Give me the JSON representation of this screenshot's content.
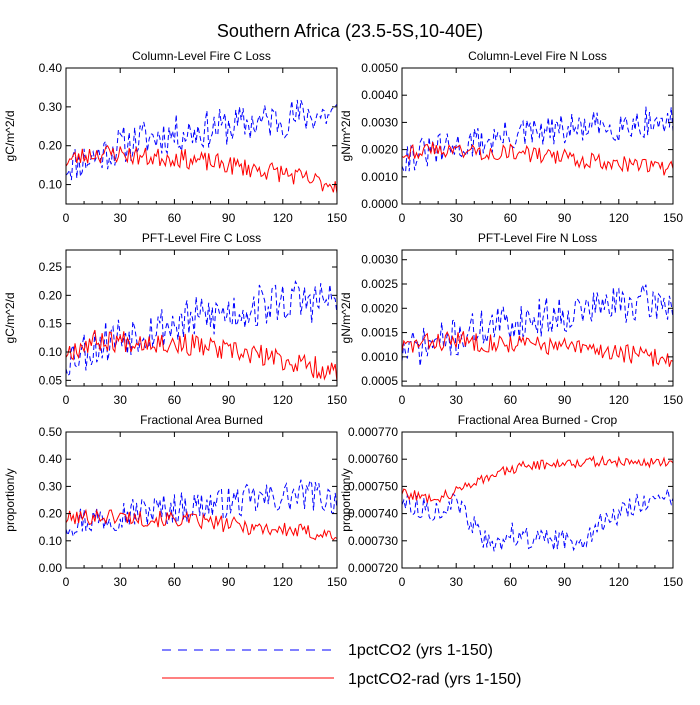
{
  "page": {
    "title": "Southern Africa (23.5-5S,10-40E)"
  },
  "legend": [
    {
      "label": "1pctCO2 (yrs 1-150)",
      "color": "#0000ff",
      "dash": "dashed"
    },
    {
      "label": "1pctCO2-rad (yrs 1-150)",
      "color": "#ff0000",
      "dash": "solid"
    }
  ],
  "chart_data": [
    {
      "type": "line",
      "title": "Column-Level Fire C Loss",
      "xlabel": "",
      "ylabel": "gC/m^2/d",
      "xlim": [
        0,
        150
      ],
      "ylim": [
        0.05,
        0.4
      ],
      "xticks": [
        0,
        30,
        60,
        90,
        120,
        150
      ],
      "yticks": [
        0.1,
        0.2,
        0.3,
        0.4
      ],
      "ytick_labels": [
        "0.10",
        "0.20",
        "0.30",
        "0.40"
      ],
      "series": [
        {
          "name": "1pctCO2 (yrs 1-150)",
          "x": [
            0,
            15,
            30,
            45,
            60,
            75,
            90,
            105,
            120,
            135,
            150
          ],
          "y": [
            0.15,
            0.17,
            0.2,
            0.22,
            0.23,
            0.24,
            0.25,
            0.26,
            0.27,
            0.28,
            0.28
          ],
          "amp": 0.05,
          "seed": 11
        },
        {
          "name": "1pctCO2-rad (yrs 1-150)",
          "x": [
            0,
            15,
            30,
            45,
            60,
            75,
            90,
            105,
            120,
            135,
            150
          ],
          "y": [
            0.16,
            0.18,
            0.18,
            0.17,
            0.17,
            0.16,
            0.15,
            0.14,
            0.13,
            0.11,
            0.1
          ],
          "amp": 0.025,
          "seed": 23
        }
      ]
    },
    {
      "type": "line",
      "title": "Column-Level Fire N Loss",
      "xlabel": "",
      "ylabel": "gN/m^2/d",
      "xlim": [
        0,
        150
      ],
      "ylim": [
        0.0,
        0.005
      ],
      "xticks": [
        0,
        30,
        60,
        90,
        120,
        150
      ],
      "yticks": [
        0.0,
        0.001,
        0.002,
        0.003,
        0.004,
        0.005
      ],
      "ytick_labels": [
        "0.0000",
        "0.0010",
        "0.0020",
        "0.0030",
        "0.0040",
        "0.0050"
      ],
      "series": [
        {
          "name": "1pctCO2 (yrs 1-150)",
          "x": [
            0,
            15,
            30,
            45,
            60,
            75,
            90,
            105,
            120,
            135,
            150
          ],
          "y": [
            0.0017,
            0.0019,
            0.0021,
            0.0023,
            0.0025,
            0.0026,
            0.0027,
            0.0028,
            0.0029,
            0.003,
            0.003
          ],
          "amp": 0.0006,
          "seed": 31
        },
        {
          "name": "1pctCO2-rad (yrs 1-150)",
          "x": [
            0,
            15,
            30,
            45,
            60,
            75,
            90,
            105,
            120,
            135,
            150
          ],
          "y": [
            0.0019,
            0.002,
            0.002,
            0.0019,
            0.0019,
            0.0018,
            0.0017,
            0.0016,
            0.0015,
            0.0014,
            0.0013
          ],
          "amp": 0.0003,
          "seed": 43
        }
      ]
    },
    {
      "type": "line",
      "title": "PFT-Level Fire C Loss",
      "xlabel": "",
      "ylabel": "gC/m^2/d",
      "xlim": [
        0,
        150
      ],
      "ylim": [
        0.04,
        0.28
      ],
      "xticks": [
        0,
        30,
        60,
        90,
        120,
        150
      ],
      "yticks": [
        0.05,
        0.1,
        0.15,
        0.2,
        0.25
      ],
      "ytick_labels": [
        "0.05",
        "0.10",
        "0.15",
        "0.20",
        "0.25"
      ],
      "series": [
        {
          "name": "1pctCO2 (yrs 1-150)",
          "x": [
            0,
            15,
            30,
            45,
            60,
            75,
            90,
            105,
            120,
            135,
            150
          ],
          "y": [
            0.09,
            0.11,
            0.13,
            0.14,
            0.15,
            0.16,
            0.17,
            0.18,
            0.19,
            0.19,
            0.19
          ],
          "amp": 0.04,
          "seed": 53
        },
        {
          "name": "1pctCO2-rad (yrs 1-150)",
          "x": [
            0,
            15,
            30,
            45,
            60,
            75,
            90,
            105,
            120,
            135,
            150
          ],
          "y": [
            0.1,
            0.12,
            0.12,
            0.12,
            0.115,
            0.11,
            0.1,
            0.095,
            0.085,
            0.075,
            0.065
          ],
          "amp": 0.02,
          "seed": 67
        }
      ]
    },
    {
      "type": "line",
      "title": "PFT-Level Fire N Loss",
      "xlabel": "",
      "ylabel": "gN/m^2/d",
      "xlim": [
        0,
        150
      ],
      "ylim": [
        0.0004,
        0.0032
      ],
      "xticks": [
        0,
        30,
        60,
        90,
        120,
        150
      ],
      "yticks": [
        0.0005,
        0.001,
        0.0015,
        0.002,
        0.0025,
        0.003
      ],
      "ytick_labels": [
        "0.0005",
        "0.0010",
        "0.0015",
        "0.0020",
        "0.0025",
        "0.0030"
      ],
      "series": [
        {
          "name": "1pctCO2 (yrs 1-150)",
          "x": [
            0,
            15,
            30,
            45,
            60,
            75,
            90,
            105,
            120,
            135,
            150
          ],
          "y": [
            0.0011,
            0.00125,
            0.0014,
            0.0016,
            0.0017,
            0.0018,
            0.0019,
            0.002,
            0.0021,
            0.0021,
            0.0021
          ],
          "amp": 0.0004,
          "seed": 71
        },
        {
          "name": "1pctCO2-rad (yrs 1-150)",
          "x": [
            0,
            15,
            30,
            45,
            60,
            75,
            90,
            105,
            120,
            135,
            150
          ],
          "y": [
            0.0012,
            0.0013,
            0.00135,
            0.0013,
            0.00128,
            0.00125,
            0.0012,
            0.00115,
            0.0011,
            0.001,
            0.00095
          ],
          "amp": 0.0002,
          "seed": 83
        }
      ]
    },
    {
      "type": "line",
      "title": "Fractional Area Burned",
      "xlabel": "",
      "ylabel": "proportion/y",
      "xlim": [
        0,
        150
      ],
      "ylim": [
        0.0,
        0.5
      ],
      "xticks": [
        0,
        30,
        60,
        90,
        120,
        150
      ],
      "yticks": [
        0.0,
        0.1,
        0.2,
        0.3,
        0.4,
        0.5
      ],
      "ytick_labels": [
        "0.00",
        "0.10",
        "0.20",
        "0.30",
        "0.40",
        "0.50"
      ],
      "series": [
        {
          "name": "1pctCO2 (yrs 1-150)",
          "x": [
            0,
            15,
            30,
            45,
            60,
            75,
            90,
            105,
            120,
            135,
            150
          ],
          "y": [
            0.17,
            0.18,
            0.2,
            0.21,
            0.22,
            0.23,
            0.24,
            0.25,
            0.26,
            0.27,
            0.25
          ],
          "amp": 0.06,
          "seed": 97
        },
        {
          "name": "1pctCO2-rad (yrs 1-150)",
          "x": [
            0,
            15,
            30,
            45,
            60,
            75,
            90,
            105,
            120,
            135,
            150
          ],
          "y": [
            0.18,
            0.19,
            0.19,
            0.18,
            0.18,
            0.17,
            0.16,
            0.15,
            0.14,
            0.13,
            0.12
          ],
          "amp": 0.03,
          "seed": 101
        }
      ]
    },
    {
      "type": "line",
      "title": "Fractional Area Burned - Crop",
      "xlabel": "",
      "ylabel": "proportion/y",
      "xlim": [
        0,
        150
      ],
      "ylim": [
        0.00072,
        0.00077
      ],
      "xticks": [
        0,
        30,
        60,
        90,
        120,
        150
      ],
      "yticks": [
        0.00072,
        0.00073,
        0.00074,
        0.00075,
        0.00076,
        0.00077
      ],
      "ytick_labels": [
        "0.000720",
        "0.000730",
        "0.000740",
        "0.000750",
        "0.000760",
        "0.000770"
      ],
      "series": [
        {
          "name": "1pctCO2 (yrs 1-150)",
          "x": [
            0,
            10,
            20,
            30,
            40,
            50,
            60,
            70,
            80,
            90,
            100,
            110,
            120,
            130,
            140,
            150
          ],
          "y": [
            0.000745,
            0.000742,
            0.000741,
            0.000744,
            0.000735,
            0.000727,
            0.000733,
            0.000731,
            0.00073,
            0.00073,
            0.000731,
            0.000736,
            0.00074,
            0.000744,
            0.000745,
            0.000745
          ],
          "amp": 4e-06,
          "seed": 113
        },
        {
          "name": "1pctCO2-rad (yrs 1-150)",
          "x": [
            0,
            10,
            20,
            30,
            40,
            50,
            60,
            70,
            80,
            90,
            100,
            110,
            120,
            130,
            140,
            150
          ],
          "y": [
            0.000748,
            0.000746,
            0.000746,
            0.000748,
            0.000752,
            0.000754,
            0.000756,
            0.000758,
            0.000758,
            0.000759,
            0.000759,
            0.000759,
            0.000759,
            0.000759,
            0.000759,
            0.000759
          ],
          "amp": 2e-06,
          "seed": 127
        }
      ]
    }
  ]
}
